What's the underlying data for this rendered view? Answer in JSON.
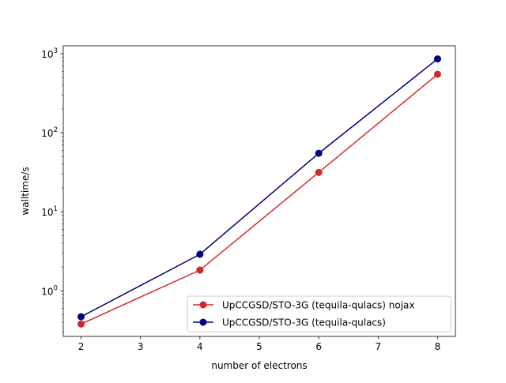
{
  "chart_data": {
    "type": "line",
    "title": "",
    "xlabel": "number of electrons",
    "ylabel": "walltime/s",
    "xlim": [
      1.7,
      8.3
    ],
    "ylim": [
      0.265,
      1260
    ],
    "yscale": "log",
    "grid": false,
    "legend_position": "lower-right",
    "x_ticks": [
      2,
      3,
      4,
      5,
      6,
      7,
      8
    ],
    "x_tick_labels": [
      "2",
      "3",
      "4",
      "5",
      "6",
      "7",
      "8"
    ],
    "y_ticks": [
      1,
      10,
      100,
      1000
    ],
    "y_tick_labels": [
      {
        "base": "10",
        "exp": "0"
      },
      {
        "base": "10",
        "exp": "1"
      },
      {
        "base": "10",
        "exp": "2"
      },
      {
        "base": "10",
        "exp": "3"
      }
    ],
    "series": [
      {
        "name": "UpCCGSD/STO-3G (tequila-qulacs) nojax",
        "color": "#d62728",
        "x": [
          2,
          4,
          6,
          8
        ],
        "y": [
          0.38,
          1.83,
          31.5,
          550
        ]
      },
      {
        "name": "UpCCGSD/STO-3G (tequila-qulacs)",
        "color": "#000080",
        "x": [
          2,
          4,
          6,
          8
        ],
        "y": [
          0.47,
          2.9,
          55,
          860
        ]
      }
    ]
  }
}
